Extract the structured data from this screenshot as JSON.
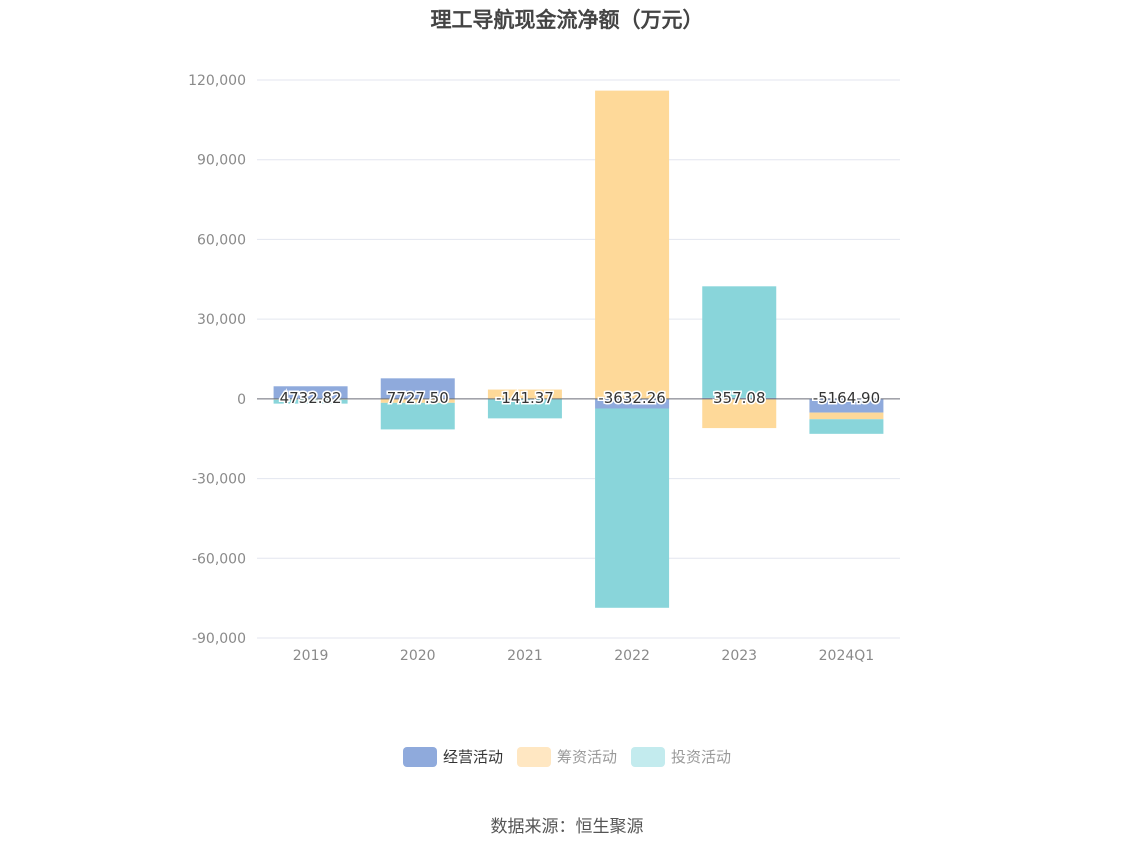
{
  "chart_data": {
    "type": "bar",
    "stacked": true,
    "title": "理工导航现金流净额（万元）",
    "categories": [
      "2019",
      "2020",
      "2021",
      "2022",
      "2023",
      "2024Q1"
    ],
    "series": [
      {
        "name": "经营活动",
        "color": "#8FAADC",
        "values": [
          4732.82,
          7727.5,
          -141.37,
          -3632.26,
          357.08,
          -5164.9
        ]
      },
      {
        "name": "筹资活动",
        "color": "#FED999",
        "values": [
          -300,
          -1500,
          3500,
          116000,
          -11000,
          -2500
        ]
      },
      {
        "name": "投资活动",
        "color": "#89D5DA",
        "values": [
          -1500,
          -10000,
          -7200,
          -75000,
          42000,
          -5500
        ]
      }
    ],
    "data_labels": [
      "4732.82",
      "7727.50",
      "-141.37",
      "-3632.26",
      "357.08",
      "-5164.90"
    ],
    "y_ticks": [
      "120,000",
      "90,000",
      "60,000",
      "30,000",
      "0",
      "-30,000",
      "-60,000",
      "-90,000"
    ],
    "ylim": [
      -90000,
      120000
    ],
    "grid": true,
    "legend_position": "bottom",
    "legend_colors": [
      "#8FAADC",
      "#FFE7C2",
      "#C3EBEE"
    ]
  },
  "source_text": "数据来源：恒生聚源"
}
